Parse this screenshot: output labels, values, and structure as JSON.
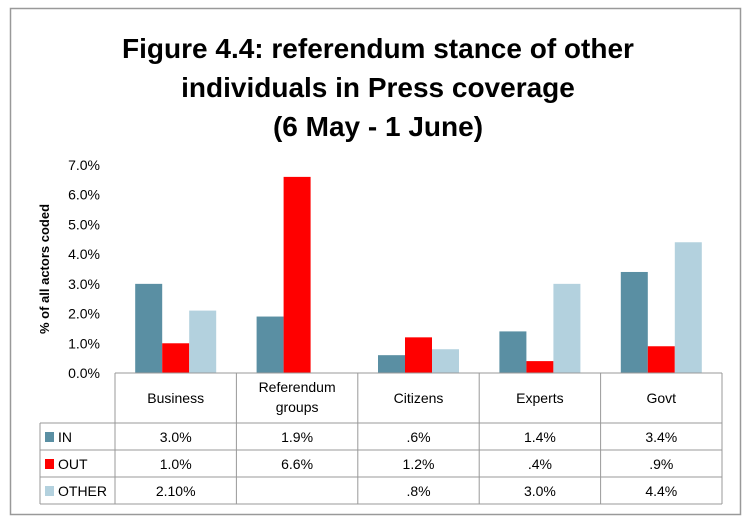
{
  "chart_data": {
    "type": "bar",
    "title": [
      "Figure 4.4: referendum stance of other",
      "individuals in Press coverage",
      "(6 May - 1 June)"
    ],
    "xlabel": "",
    "ylabel": "% of all actors coded",
    "ylim": [
      0,
      7
    ],
    "yticks": [
      "0.0%",
      "1.0%",
      "2.0%",
      "3.0%",
      "4.0%",
      "5.0%",
      "6.0%",
      "7.0%"
    ],
    "categories": [
      [
        "Business"
      ],
      [
        "Referendum",
        "groups"
      ],
      [
        "Citizens"
      ],
      [
        "Experts"
      ],
      [
        "Govt"
      ]
    ],
    "legend_placement": "data-table",
    "series": [
      {
        "name": "IN",
        "color": "#5a8fa3",
        "values": [
          3.0,
          1.9,
          0.6,
          1.4,
          3.4
        ],
        "labels": [
          "3.0%",
          "1.9%",
          ".6%",
          "1.4%",
          "3.4%"
        ]
      },
      {
        "name": "OUT",
        "color": "#ff0000",
        "values": [
          1.0,
          6.6,
          1.2,
          0.4,
          0.9
        ],
        "labels": [
          "1.0%",
          "6.6%",
          "1.2%",
          ".4%",
          ".9%"
        ]
      },
      {
        "name": "OTHER",
        "color": "#b3d1de",
        "values": [
          2.1,
          null,
          0.8,
          3.0,
          4.4
        ],
        "labels": [
          "2.10%",
          "",
          ".8%",
          "3.0%",
          "4.4%"
        ]
      }
    ]
  }
}
